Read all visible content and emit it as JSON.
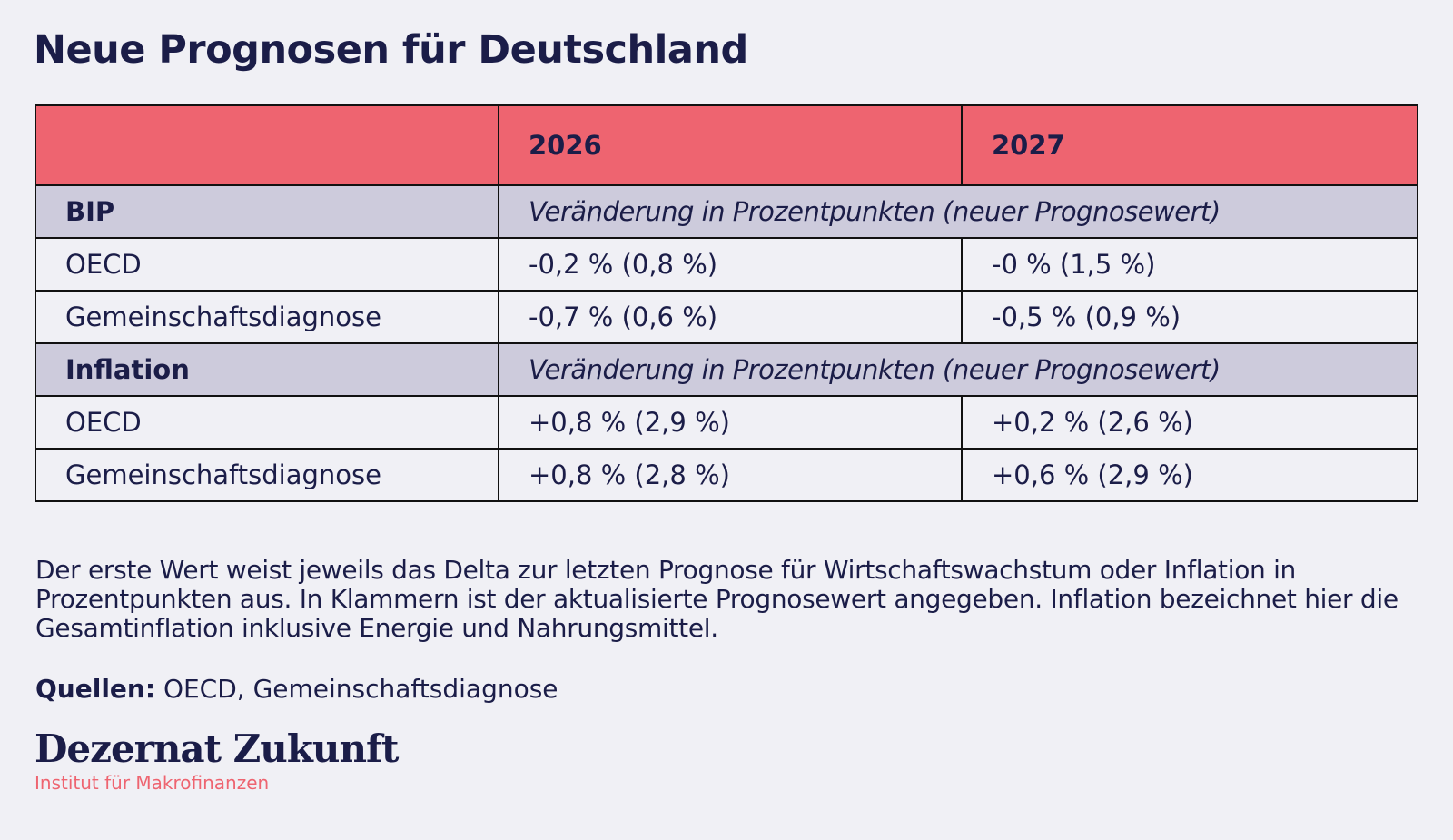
{
  "title": "Neue Prognosen für Deutschland",
  "table": {
    "header": [
      "",
      "2026",
      "2027"
    ],
    "sections": [
      {
        "label": "BIP",
        "note": "Veränderung in Prozentpunkten (neuer Prognosewert)",
        "rows": [
          {
            "source": "OECD",
            "y2026": "-0,2 % (0,8 %)",
            "y2027": "-0 % (1,5 %)"
          },
          {
            "source": "Gemeinschaftsdiagnose",
            "y2026": "-0,7 % (0,6 %)",
            "y2027": "-0,5 % (0,9 %)"
          }
        ]
      },
      {
        "label": "Inflation",
        "note": "Veränderung in Prozentpunkten (neuer Prognosewert)",
        "rows": [
          {
            "source": "OECD",
            "y2026": "+0,8 % (2,9 %)",
            "y2027": "+0,2 % (2,6 %)"
          },
          {
            "source": "Gemeinschaftsdiagnose",
            "y2026": "+0,8 % (2,8 %)",
            "y2027": "+0,6 % (2,9 %)"
          }
        ]
      }
    ]
  },
  "footnote": "Der erste Wert weist jeweils das Delta zur letzten Prognose für Wirtschaftswachstum oder Inflation in Prozentpunkten aus. In Klammern ist der aktualisierte Prognosewert angegeben. Inflation bezeichnet hier die Gesamtinflation inklusive Energie und Nahrungsmittel.",
  "sources": {
    "label": "Quellen:",
    "text": " OECD, Gemeinschaftsdiagnose"
  },
  "logo": {
    "name": "Dezernat Zukunft",
    "subtitle": "Institut für Makrofinanzen"
  },
  "colors": {
    "header": "#ee6470",
    "section": "#cdcbdc",
    "text": "#1b1d48",
    "background": "#f0f0f5"
  }
}
